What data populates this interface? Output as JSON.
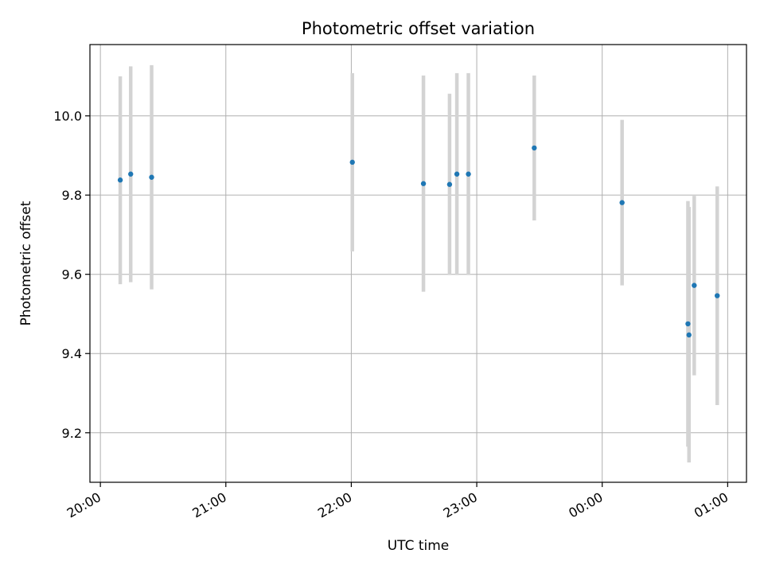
{
  "chart_data": {
    "type": "scatter",
    "title": "Photometric offset variation",
    "xlabel": "UTC time",
    "ylabel": "Photometric offset",
    "x_ticks": [
      "20:00",
      "21:00",
      "22:00",
      "23:00",
      "00:00",
      "01:00"
    ],
    "y_ticks": [
      "9.2",
      "9.4",
      "9.6",
      "9.8",
      "10.0"
    ],
    "xlim": [
      "19:55",
      "01:09"
    ],
    "ylim": [
      9.075,
      10.18
    ],
    "grid": true,
    "legend": "none",
    "point_color": "#1f77b4",
    "errorbar_color": "#d3d3d3",
    "points": [
      {
        "x": "20:09.5",
        "y": 9.838,
        "y_low": 9.575,
        "y_high": 10.1
      },
      {
        "x": "20:14.5",
        "y": 9.853,
        "y_low": 9.58,
        "y_high": 10.125
      },
      {
        "x": "20:24.5",
        "y": 9.845,
        "y_low": 9.562,
        "y_high": 10.128
      },
      {
        "x": "22:00.5",
        "y": 9.883,
        "y_low": 9.658,
        "y_high": 10.108
      },
      {
        "x": "22:34.5",
        "y": 9.829,
        "y_low": 9.556,
        "y_high": 10.102
      },
      {
        "x": "22:47",
        "y": 9.827,
        "y_low": 9.598,
        "y_high": 10.056
      },
      {
        "x": "22:50.5",
        "y": 9.853,
        "y_low": 9.598,
        "y_high": 10.108
      },
      {
        "x": "22:56",
        "y": 9.853,
        "y_low": 9.598,
        "y_high": 10.108
      },
      {
        "x": "23:27.5",
        "y": 9.919,
        "y_low": 9.736,
        "y_high": 10.102
      },
      {
        "x": "00:09.5",
        "y": 9.781,
        "y_low": 9.572,
        "y_high": 9.99
      },
      {
        "x": "00:41",
        "y": 9.475,
        "y_low": 9.165,
        "y_high": 9.785
      },
      {
        "x": "00:41.5",
        "y": 9.447,
        "y_low": 9.125,
        "y_high": 9.77
      },
      {
        "x": "00:44",
        "y": 9.572,
        "y_low": 9.345,
        "y_high": 9.798
      },
      {
        "x": "00:55",
        "y": 9.546,
        "y_low": 9.27,
        "y_high": 9.822
      }
    ]
  }
}
